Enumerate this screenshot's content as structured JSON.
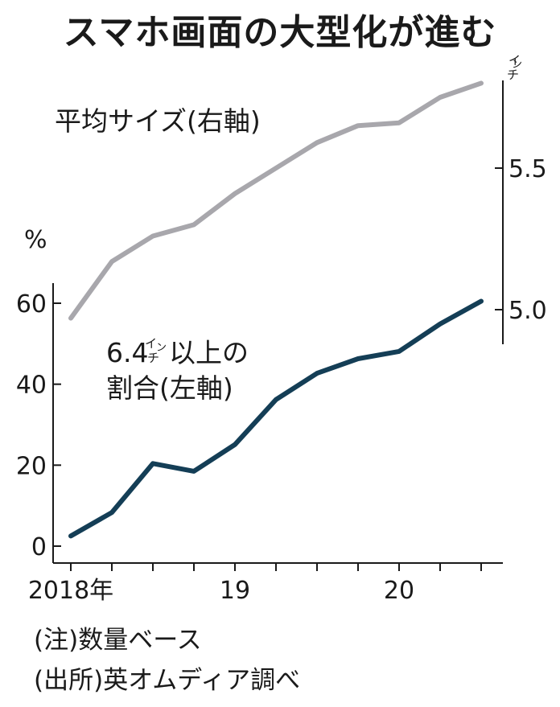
{
  "title": "スマホ画面の大型化が進む",
  "notes": {
    "note1": "(注)数量ベース",
    "note2": "(出所)英オムディア調べ"
  },
  "chart_data": {
    "type": "line",
    "x": [
      "2018Q1",
      "2018Q2",
      "2018Q3",
      "2018Q4",
      "2019Q1",
      "2019Q2",
      "2019Q3",
      "2019Q4",
      "2020Q1",
      "2020Q2",
      "2020Q3"
    ],
    "x_tick_labels": [
      "2018年",
      "",
      "",
      "",
      "19",
      "",
      "",
      "",
      "20",
      "",
      ""
    ],
    "left_axis": {
      "unit": "%",
      "ylim": [
        0,
        65
      ],
      "ticks": [
        0,
        20,
        40,
        60
      ]
    },
    "right_axis": {
      "unit": "インチ",
      "ylim": [
        4.9,
        5.85
      ],
      "ticks": [
        5.0,
        5.5
      ]
    },
    "series": [
      {
        "name": "平均サイズ(右軸)",
        "axis": "right",
        "color": "#a8a7ac",
        "values": [
          4.97,
          5.17,
          5.26,
          5.3,
          5.41,
          5.5,
          5.59,
          5.65,
          5.66,
          5.75,
          5.8
        ]
      },
      {
        "name": "6.4インチ以上の割合(左軸)",
        "axis": "left",
        "color": "#143e56",
        "values": [
          2.5,
          8.3,
          20.4,
          18.5,
          25.1,
          36.2,
          42.7,
          46.3,
          48.1,
          54.9,
          60.5
        ]
      }
    ],
    "labels": {
      "right_series_label": "平均サイズ(右軸)",
      "left_series_label_a": "6.4",
      "left_series_label_b": "以上の",
      "left_series_label_c": "割合(左軸)",
      "inch_small_1": "イ",
      "inch_small_2": "ン",
      "inch_small_3": "チ",
      "percent": "%"
    },
    "grid": false
  }
}
